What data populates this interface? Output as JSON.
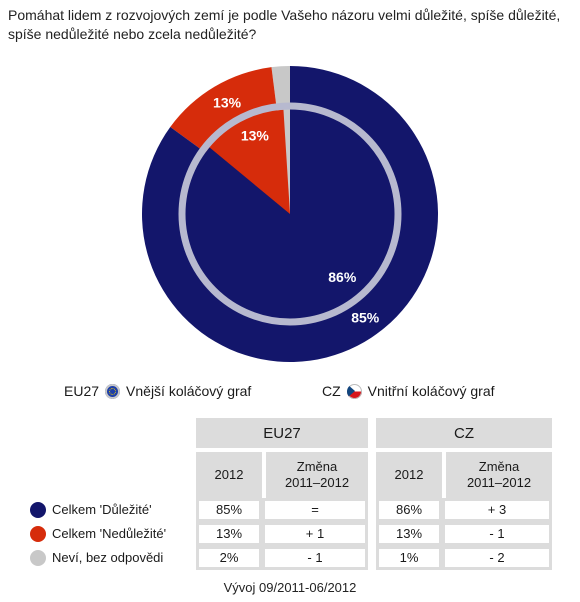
{
  "question": "Pomáhat lidem z rozvojových zemí je podle Vašeho názoru velmi důležité, spíše důležité, spíše nedůležité nebo zcela nedůležité?",
  "colors": {
    "important": "#13166b",
    "not_important": "#d62c0b",
    "dont_know": "#c8c8c8",
    "inner_ring": "#b7b9cf"
  },
  "legend": {
    "eu_code": "EU27",
    "eu_text": "Vnější koláčový graf",
    "cz_code": "CZ",
    "cz_text": "Vnitřní koláčový graf"
  },
  "chart_data": {
    "type": "pie",
    "outer": {
      "name": "EU27",
      "slices": [
        {
          "label": "Celkem 'Důležité'",
          "value": 85,
          "text": "85%"
        },
        {
          "label": "Celkem 'Nedůležité'",
          "value": 13,
          "text": "13%"
        },
        {
          "label": "Neví, bez odpovědi",
          "value": 2,
          "text": ""
        }
      ]
    },
    "inner": {
      "name": "CZ",
      "slices": [
        {
          "label": "Celkem 'Důležité'",
          "value": 86,
          "text": "86%"
        },
        {
          "label": "Celkem 'Nedůležité'",
          "value": 13,
          "text": "13%"
        },
        {
          "label": "Neví, bez odpovědi",
          "value": 1,
          "text": ""
        }
      ]
    }
  },
  "table": {
    "group_eu": "EU27",
    "group_cz": "CZ",
    "col_year": "2012",
    "col_change": "Změna",
    "col_change_range": "2011–2012",
    "rows": [
      {
        "label": "Celkem 'Důležité'",
        "eu_2012": "85%",
        "eu_change": "=",
        "cz_2012": "86%",
        "cz_change": "+ 3"
      },
      {
        "label": "Celkem 'Nedůležité'",
        "eu_2012": "13%",
        "eu_change": "+ 1",
        "cz_2012": "13%",
        "cz_change": "- 1"
      },
      {
        "label": "Neví, bez odpovědi",
        "eu_2012": "2%",
        "eu_change": "- 1",
        "cz_2012": "1%",
        "cz_change": "- 2"
      }
    ]
  },
  "footer": "Vývoj 09/2011-06/2012"
}
